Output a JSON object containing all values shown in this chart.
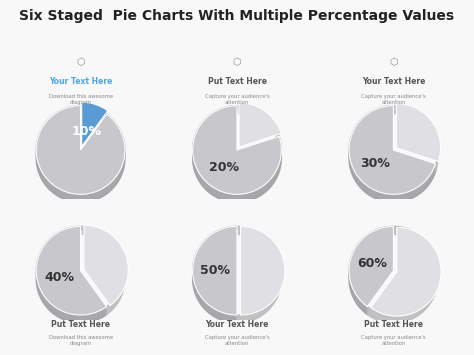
{
  "title": "Six Staged  Pie Charts With Multiple Percentage Values",
  "background_color": "#f8f8f8",
  "percentages": [
    10,
    20,
    30,
    40,
    50,
    60
  ],
  "blue_color": "#5b9bd5",
  "main_gray": "#c8c8cc",
  "light_slice": "#e0e0e4",
  "shadow_top": "#b8b8bc",
  "shadow_side": "#a0a0a4",
  "white_edge": "#ffffff",
  "text_color": "#333333",
  "pct_fontsize": 9,
  "title_fontsize": 10,
  "top_labels": [
    "Your Text Here",
    "Put Text Here",
    "Your Text Here"
  ],
  "top_sublabels": [
    "Download this awesome\ndiagram",
    "Capture your audience's\nattention",
    "Capture your audience's\nattention"
  ],
  "bottom_labels": [
    "Put Text Here",
    "Your Text Here",
    "Put Text Here"
  ],
  "bottom_sublabels": [
    "Download this awesome\ndiagram",
    "Capture your audience's\nattention",
    "Capture your audience's\nattention"
  ],
  "top_label_color_0": "#4da6e0",
  "other_label_color": "#555555",
  "sub_label_color": "#888888",
  "grid_cols": 3,
  "grid_rows": 2
}
